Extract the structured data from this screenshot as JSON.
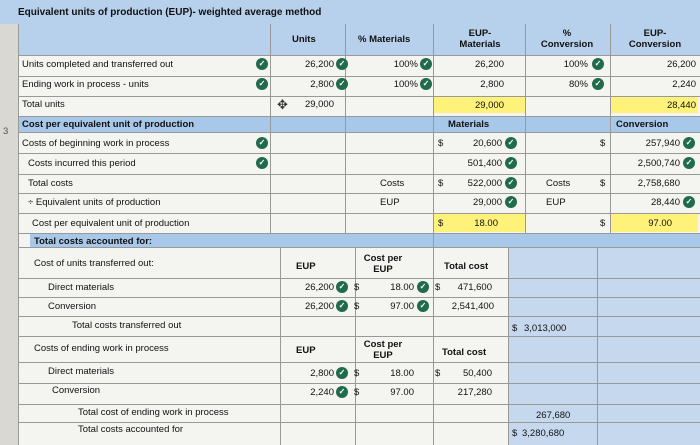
{
  "title": "Equivalent units of production (EUP)- weighted average method",
  "headers": {
    "units": "Units",
    "pct_materials": "% Materials",
    "eup_materials": "EUP-\nMaterials",
    "pct_conversion": "%\nConversion",
    "eup_conversion": "EUP-\nConversion"
  },
  "rows": {
    "completed": {
      "label": "Units completed and transferred out",
      "units": "26,200",
      "pct_mat": "100%",
      "eup_mat": "26,200",
      "pct_conv": "100%",
      "eup_conv": "26,200"
    },
    "ending_wip": {
      "label": "Ending work in process - units",
      "units": "2,800",
      "pct_mat": "100%",
      "eup_mat": "2,800",
      "pct_conv": "80%",
      "eup_conv": "2,240"
    },
    "total_units": {
      "label": "Total units",
      "units": "29,000",
      "eup_mat": "29,000",
      "eup_conv": "28,440"
    }
  },
  "cost_section": {
    "header": "Cost per equivalent unit of production",
    "materials": "Materials",
    "conversion": "Conversion",
    "beginning": {
      "label": "Costs of beginning work in process",
      "mat": "20,600",
      "conv": "257,940"
    },
    "incurred": {
      "label": "Costs incurred this period",
      "mat": "501,400",
      "conv": "2,500,740"
    },
    "total": {
      "label": "Total costs",
      "costs_label": "Costs",
      "mat": "522,000",
      "costs_label2": "Costs",
      "conv": "2,758,680"
    },
    "eup": {
      "label": "÷ Equivalent units of production",
      "eup_label": "EUP",
      "mat": "29,000",
      "eup_label2": "EUP",
      "conv": "28,440"
    },
    "per_eup": {
      "label": "Cost per equivalent unit of production",
      "mat": "18.00",
      "conv": "97.00"
    }
  },
  "accounted": {
    "header": "Total costs accounted for:",
    "transferred": {
      "label": "Cost of units transferred out:",
      "eup_head": "EUP",
      "cpe_head": "Cost per\nEUP",
      "tc_head": "Total cost",
      "dm_label": "Direct materials",
      "dm_eup": "26,200",
      "dm_cpe": "18.00",
      "dm_tc": "471,600",
      "conv_label": "Conversion",
      "conv_eup": "26,200",
      "conv_cpe": "97.00",
      "conv_tc": "2,541,400",
      "total_label": "Total costs transferred out",
      "total": "3,013,000"
    },
    "ending": {
      "label": "Costs of ending work in process",
      "eup_head": "EUP",
      "cpe_head": "Cost per\nEUP",
      "tc_head": "Total cost",
      "dm_label": "Direct materials",
      "dm_eup": "2,800",
      "dm_cpe": "18.00",
      "dm_tc": "50,400",
      "conv_label": "Conversion",
      "conv_eup": "2,240",
      "conv_cpe": "97.00",
      "conv_tc": "217,280",
      "total_label": "Total cost of ending work in process",
      "total": "267,680",
      "grand_label": "Total costs accounted for",
      "grand": "3,280,680"
    }
  },
  "dollar": "$",
  "margin_mark": "3"
}
